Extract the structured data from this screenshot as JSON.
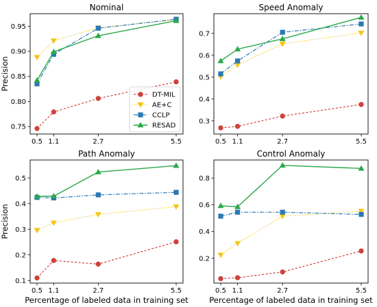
{
  "chart_data": [
    {
      "type": "line",
      "title": "Nominal",
      "ylabel": "Precision",
      "xlabel": "",
      "x": [
        0.5,
        1.1,
        2.7,
        5.5
      ],
      "xticks": [
        "0.5",
        "1.1",
        "2.7",
        "5.5"
      ],
      "ylim": [
        0.735,
        0.975
      ],
      "yticks": [
        0.75,
        0.8,
        0.85,
        0.9,
        0.95
      ],
      "ytick_labels": [
        "0.75",
        "0.80",
        "0.85",
        "0.90",
        "0.95"
      ],
      "legend": "center-right",
      "series": [
        {
          "name": "DT-MIL",
          "values": [
            0.746,
            0.779,
            0.806,
            0.839
          ]
        },
        {
          "name": "AE+C",
          "values": [
            0.888,
            0.921,
            0.947,
            0.963
          ]
        },
        {
          "name": "CCLP",
          "values": [
            0.835,
            0.894,
            0.946,
            0.964
          ]
        },
        {
          "name": "RESAD",
          "values": [
            0.842,
            0.899,
            0.931,
            0.961
          ]
        }
      ]
    },
    {
      "type": "line",
      "title": "Speed Anomaly",
      "ylabel": "",
      "xlabel": "",
      "x": [
        0.5,
        1.1,
        2.7,
        5.5
      ],
      "xticks": [
        "0.5",
        "1.1",
        "2.7",
        "5.5"
      ],
      "ylim": [
        0.24,
        0.79
      ],
      "yticks": [
        0.3,
        0.4,
        0.5,
        0.6,
        0.7
      ],
      "ytick_labels": [
        "0.3",
        "0.4",
        "0.5",
        "0.6",
        "0.7"
      ],
      "series": [
        {
          "name": "DT-MIL",
          "values": [
            0.268,
            0.275,
            0.322,
            0.375
          ]
        },
        {
          "name": "AE+C",
          "values": [
            0.502,
            0.556,
            0.652,
            0.702
          ]
        },
        {
          "name": "CCLP",
          "values": [
            0.515,
            0.574,
            0.705,
            0.743
          ]
        },
        {
          "name": "RESAD",
          "values": [
            0.574,
            0.628,
            0.675,
            0.773
          ]
        }
      ]
    },
    {
      "type": "line",
      "title": "Path Anomaly",
      "ylabel": "Precision",
      "xlabel": "Percentage of labeled data in training set",
      "x": [
        0.5,
        1.1,
        2.7,
        5.5
      ],
      "xticks": [
        "0.5",
        "1.1",
        "2.7",
        "5.5"
      ],
      "ylim": [
        0.09,
        0.57
      ],
      "yticks": [
        0.1,
        0.2,
        0.3,
        0.4,
        0.5
      ],
      "ytick_labels": [
        "0.1",
        "0.2",
        "0.3",
        "0.4",
        "0.5"
      ],
      "series": [
        {
          "name": "DT-MIL",
          "values": [
            0.11,
            0.178,
            0.164,
            0.251
          ]
        },
        {
          "name": "AE+C",
          "values": [
            0.296,
            0.325,
            0.358,
            0.388
          ]
        },
        {
          "name": "CCLP",
          "values": [
            0.424,
            0.422,
            0.434,
            0.444
          ]
        },
        {
          "name": "RESAD",
          "values": [
            0.428,
            0.429,
            0.523,
            0.548
          ]
        }
      ]
    },
    {
      "type": "line",
      "title": "Control Anomaly",
      "ylabel": "",
      "xlabel": "Percentage of labeled data in training set",
      "x": [
        0.5,
        1.1,
        2.7,
        5.5
      ],
      "xticks": [
        "0.5",
        "1.1",
        "2.7",
        "5.5"
      ],
      "ylim": [
        0.015,
        0.935
      ],
      "yticks": [
        0.2,
        0.4,
        0.6,
        0.8
      ],
      "ytick_labels": [
        "0.2",
        "0.4",
        "0.6",
        "0.8"
      ],
      "series": [
        {
          "name": "DT-MIL",
          "values": [
            0.048,
            0.055,
            0.098,
            0.255
          ]
        },
        {
          "name": "AE+C",
          "values": [
            0.225,
            0.312,
            0.515,
            0.553
          ]
        },
        {
          "name": "CCLP",
          "values": [
            0.515,
            0.545,
            0.545,
            0.528
          ]
        },
        {
          "name": "RESAD",
          "values": [
            0.593,
            0.585,
            0.895,
            0.872
          ]
        }
      ]
    }
  ],
  "legend_series": [
    "DT-MIL",
    "AE+C",
    "CCLP",
    "RESAD"
  ],
  "styles": [
    {
      "color": "#d0413b",
      "marker": "circle",
      "dash": "3,2.5",
      "width": 1.2
    },
    {
      "color": "#f5c518",
      "marker": "triangle-down",
      "dash": "1.2,2",
      "width": 1.2
    },
    {
      "color": "#2a78b5",
      "marker": "square",
      "dash": "6,2,1.5,2",
      "width": 1.2
    },
    {
      "color": "#2aa84a",
      "marker": "triangle-up",
      "dash": "",
      "width": 1.4
    }
  ]
}
